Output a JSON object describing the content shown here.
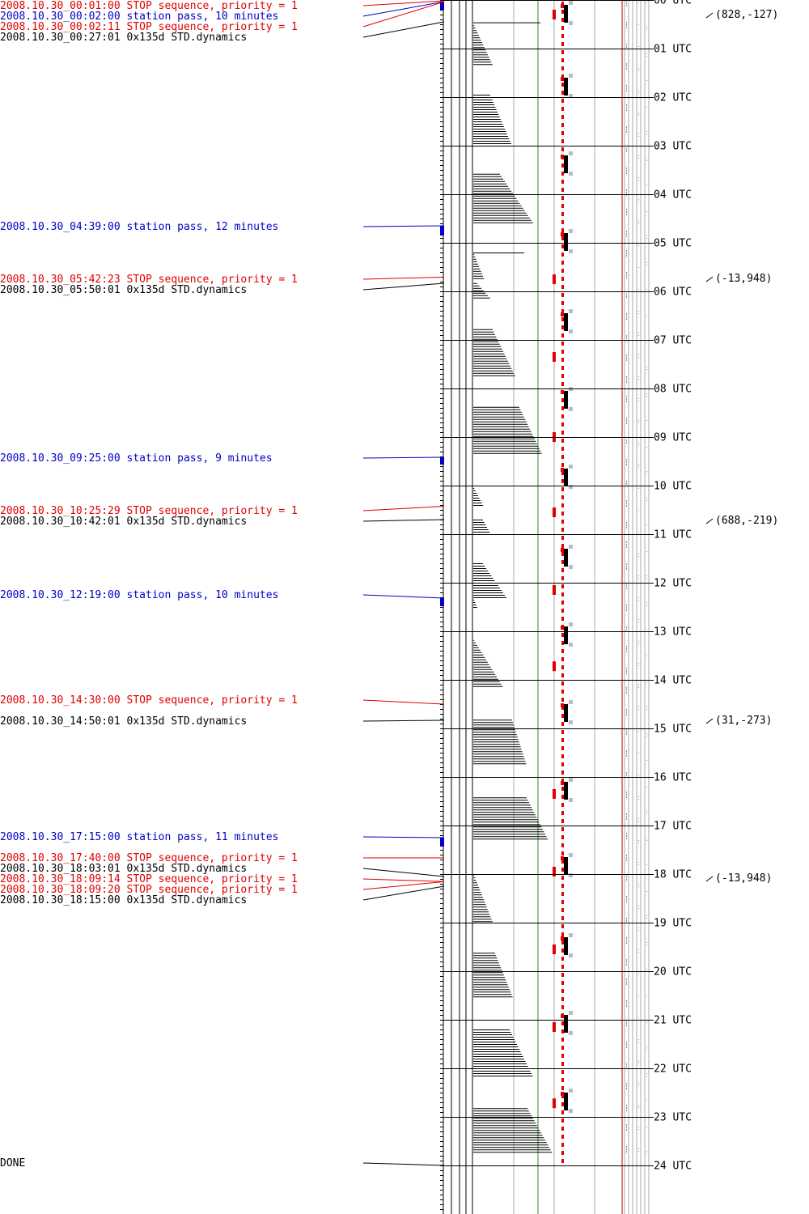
{
  "chart_data": {
    "type": "timeline",
    "title": "",
    "date": "2008.10.30",
    "hour_labels": [
      "00 UTC",
      "01 UTC",
      "02 UTC",
      "03 UTC",
      "04 UTC",
      "05 UTC",
      "06 UTC",
      "07 UTC",
      "08 UTC",
      "09 UTC",
      "10 UTC",
      "11 UTC",
      "12 UTC",
      "13 UTC",
      "14 UTC",
      "15 UTC",
      "16 UTC",
      "17 UTC",
      "18 UTC",
      "19 UTC",
      "20 UTC",
      "21 UTC",
      "22 UTC",
      "23 UTC",
      "24 UTC"
    ],
    "events": [
      {
        "label": "2008.10.30_00:01:00 STOP sequence, priority = 1",
        "kind": "stop",
        "time_h": 0.0167
      },
      {
        "label": "2008.10.30_00:02:00 station pass, 10 minutes",
        "kind": "pass",
        "time_h": 0.0333,
        "duration_min": 10
      },
      {
        "label": "2008.10.30_00:02:11 STOP sequence, priority = 1",
        "kind": "stop",
        "time_h": 0.0364
      },
      {
        "label": "2008.10.30_00:27:01 0x135d STD.dynamics",
        "kind": "dyn",
        "time_h": 0.4503
      },
      {
        "label": "2008.10.30_04:39:00 station pass, 12 minutes",
        "kind": "pass",
        "time_h": 4.65,
        "duration_min": 12
      },
      {
        "label": "2008.10.30_05:42:23 STOP sequence, priority = 1",
        "kind": "stop",
        "time_h": 5.7064
      },
      {
        "label": "2008.10.30_05:50:01 0x135d STD.dynamics",
        "kind": "dyn",
        "time_h": 5.8336
      },
      {
        "label": "2008.10.30_09:25:00 station pass, 9 minutes",
        "kind": "pass",
        "time_h": 9.4167,
        "duration_min": 9
      },
      {
        "label": "2008.10.30_10:25:29 STOP sequence, priority = 1",
        "kind": "stop",
        "time_h": 10.4247
      },
      {
        "label": "2008.10.30_10:42:01 0x135d STD.dynamics",
        "kind": "dyn",
        "time_h": 10.7003
      },
      {
        "label": "2008.10.30_12:19:00 station pass, 10 minutes",
        "kind": "pass",
        "time_h": 12.3167,
        "duration_min": 10
      },
      {
        "label": "2008.10.30_14:30:00 STOP sequence, priority = 1",
        "kind": "stop",
        "time_h": 14.5
      },
      {
        "label": "2008.10.30_14:50:01 0x135d STD.dynamics",
        "kind": "dyn",
        "time_h": 14.8336
      },
      {
        "label": "2008.10.30_17:15:00 station pass, 11 minutes",
        "kind": "pass",
        "time_h": 17.25,
        "duration_min": 11
      },
      {
        "label": "2008.10.30_17:40:00 STOP sequence, priority = 1",
        "kind": "stop",
        "time_h": 17.6667
      },
      {
        "label": "2008.10.30_18:03:01 0x135d STD.dynamics",
        "kind": "dyn",
        "time_h": 18.0503
      },
      {
        "label": "2008.10.30_18:09:14 STOP sequence, priority = 1",
        "kind": "stop",
        "time_h": 18.1539
      },
      {
        "label": "2008.10.30_18:09:20 STOP sequence, priority = 1",
        "kind": "stop",
        "time_h": 18.1556
      },
      {
        "label": "2008.10.30_18:15:00 0x135d STD.dynamics",
        "kind": "dyn",
        "time_h": 18.25
      },
      {
        "label": "DONE",
        "kind": "done",
        "time_h": 24.0
      }
    ],
    "attitude_annotations": [
      {
        "label": "(828,-127)",
        "time_h": 0.3
      },
      {
        "label": "(-13,948)",
        "time_h": 5.7
      },
      {
        "label": "(688,-219)",
        "time_h": 10.7
      },
      {
        "label": "(31,-273)",
        "time_h": 14.8
      },
      {
        "label": "(-13,948)",
        "time_h": 18.05
      }
    ],
    "bar_blocks": [
      {
        "start_h": 0.52,
        "end_h": 1.33,
        "w0": 0.02,
        "w1": 0.4
      },
      {
        "start_h": 1.95,
        "end_h": 2.95,
        "w0": 0.35,
        "w1": 0.78
      },
      {
        "start_h": 3.58,
        "end_h": 4.58,
        "w0": 0.55,
        "w1": 1.23
      },
      {
        "start_h": 5.23,
        "end_h": 5.73,
        "w0": 0.02,
        "w1": 0.22
      },
      {
        "start_h": 5.83,
        "end_h": 6.17,
        "w0": 0.08,
        "w1": 0.38
      },
      {
        "start_h": 6.78,
        "end_h": 7.75,
        "w0": 0.4,
        "w1": 0.87
      },
      {
        "start_h": 8.38,
        "end_h": 9.37,
        "w0": 0.95,
        "w1": 1.43
      },
      {
        "start_h": 10.05,
        "end_h": 10.43,
        "w0": 0.02,
        "w1": 0.22
      },
      {
        "start_h": 10.7,
        "end_h": 10.97,
        "w0": 0.2,
        "w1": 0.35
      },
      {
        "start_h": 11.6,
        "end_h": 12.35,
        "w0": 0.2,
        "w1": 0.72
      },
      {
        "start_h": 12.35,
        "end_h": 12.55,
        "w0": 0.02,
        "w1": 0.1
      },
      {
        "start_h": 13.18,
        "end_h": 14.15,
        "w0": 0.02,
        "w1": 0.62
      },
      {
        "start_h": 14.82,
        "end_h": 15.75,
        "w0": 0.8,
        "w1": 1.1
      },
      {
        "start_h": 16.42,
        "end_h": 17.3,
        "w0": 1.1,
        "w1": 1.55
      },
      {
        "start_h": 18.02,
        "end_h": 18.98,
        "w0": 0.02,
        "w1": 0.4
      },
      {
        "start_h": 19.62,
        "end_h": 20.57,
        "w0": 0.45,
        "w1": 0.83
      },
      {
        "start_h": 21.2,
        "end_h": 22.2,
        "w0": 0.75,
        "w1": 1.25
      },
      {
        "start_h": 22.82,
        "end_h": 23.77,
        "w0": 1.12,
        "w1": 1.65
      }
    ],
    "red_marks_h": [
      0.3,
      5.75,
      7.35,
      9.0,
      10.55,
      12.15,
      13.72,
      16.35,
      17.95,
      19.55,
      21.15,
      22.72
    ],
    "hour_pulses_h": [
      0.05,
      1.55,
      3.15,
      4.75,
      6.4,
      8.0,
      9.6,
      11.25,
      12.85,
      14.45,
      16.05,
      17.6,
      19.25,
      20.85,
      22.45
    ]
  }
}
